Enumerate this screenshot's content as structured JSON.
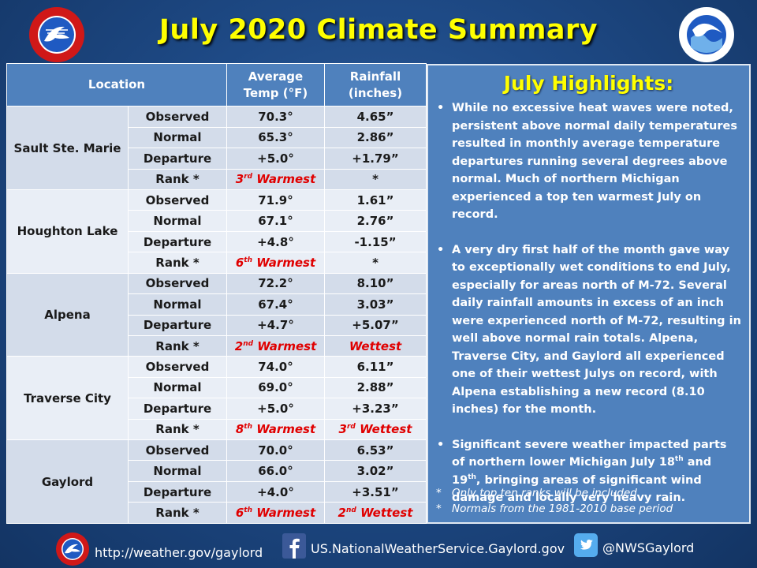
{
  "title": "July 2020 Climate Summary",
  "table": {
    "headers": {
      "location": "Location",
      "avg_temp_line1": "Average",
      "avg_temp_line2": "Temp (°F)",
      "rainfall_line1": "Rainfall",
      "rainfall_line2": "(inches)"
    },
    "locations": [
      {
        "name": "Sault Ste. Marie",
        "rows": [
          {
            "label": "Observed",
            "temp": "70.3°",
            "rain": "4.65”"
          },
          {
            "label": "Normal",
            "temp": "65.3°",
            "rain": "2.86”"
          },
          {
            "label": "Departure",
            "temp": "+5.0°",
            "rain": "+1.79”"
          },
          {
            "label": "Rank *",
            "temp_num": "3",
            "temp_sup": "rd",
            "temp_word": " Warmest",
            "rain_num": "",
            "rain_sup": "",
            "rain_word": "*"
          }
        ]
      },
      {
        "name": "Houghton Lake",
        "rows": [
          {
            "label": "Observed",
            "temp": "71.9°",
            "rain": "1.61”"
          },
          {
            "label": "Normal",
            "temp": "67.1°",
            "rain": "2.76”"
          },
          {
            "label": "Departure",
            "temp": "+4.8°",
            "rain": "-1.15”"
          },
          {
            "label": "Rank *",
            "temp_num": "6",
            "temp_sup": "th",
            "temp_word": " Warmest",
            "rain_num": "",
            "rain_sup": "",
            "rain_word": "*"
          }
        ]
      },
      {
        "name": "Alpena",
        "rows": [
          {
            "label": "Observed",
            "temp": "72.2°",
            "rain": "8.10”"
          },
          {
            "label": "Normal",
            "temp": "67.4°",
            "rain": "3.03”"
          },
          {
            "label": "Departure",
            "temp": "+4.7°",
            "rain": "+5.07”"
          },
          {
            "label": "Rank *",
            "temp_num": "2",
            "temp_sup": "nd",
            "temp_word": " Warmest",
            "rain_num": "",
            "rain_sup": "",
            "rain_word": "Wettest"
          }
        ]
      },
      {
        "name": "Traverse City",
        "rows": [
          {
            "label": "Observed",
            "temp": "74.0°",
            "rain": "6.11”"
          },
          {
            "label": "Normal",
            "temp": "69.0°",
            "rain": "2.88”"
          },
          {
            "label": "Departure",
            "temp": "+5.0°",
            "rain": "+3.23”"
          },
          {
            "label": "Rank *",
            "temp_num": "8",
            "temp_sup": "th",
            "temp_word": " Warmest",
            "rain_num": "3",
            "rain_sup": "rd",
            "rain_word": " Wettest"
          }
        ]
      },
      {
        "name": "Gaylord",
        "rows": [
          {
            "label": "Observed",
            "temp": "70.0°",
            "rain": "6.53”"
          },
          {
            "label": "Normal",
            "temp": "66.0°",
            "rain": "3.02”"
          },
          {
            "label": "Departure",
            "temp": "+4.0°",
            "rain": "+3.51”"
          },
          {
            "label": "Rank *",
            "temp_num": "6",
            "temp_sup": "th",
            "temp_word": " Warmest",
            "rain_num": "2",
            "rain_sup": "nd",
            "rain_word": " Wettest"
          }
        ]
      }
    ]
  },
  "highlights": {
    "title": "July Highlights:",
    "bullet1": "While no excessive heat waves were noted, persistent above normal daily temperatures resulted in monthly average temperature departures running several degrees above normal.  Much of northern Michigan experienced a top ten warmest July on record.",
    "bullet2": "A very dry first half of the month gave way to exceptionally wet conditions to end July, especially for areas north of M-72.  Several daily rainfall amounts in excess of an inch were experienced north of M-72, resulting in well above normal rain totals.  Alpena, Traverse City, and Gaylord all experienced one of their wettest Julys on record, with Alpena establishing a new record (8.10 inches) for the month.",
    "bullet3_part1": "Significant severe weather impacted parts of northern lower Michigan July 18",
    "bullet3_sup1": "th",
    "bullet3_part2": " and 19",
    "bullet3_sup2": "th",
    "bullet3_part3": ", bringing areas of significant wind damage and locally very heavy rain.",
    "note1": "Only top ten ranks will be included",
    "note2": "Normals from the 1981-2010 base period"
  },
  "footer": {
    "website": "http://weather.gov/gaylord",
    "facebook": "US.NationalWeatherService.Gaylord.gov",
    "twitter": "@NWSGaylord"
  },
  "colors": {
    "title": "#ffff00",
    "header_bg": "#4f81bd",
    "row_dark": "#d3dcea",
    "row_light": "#e9eef6",
    "rank_red": "#e00000"
  }
}
